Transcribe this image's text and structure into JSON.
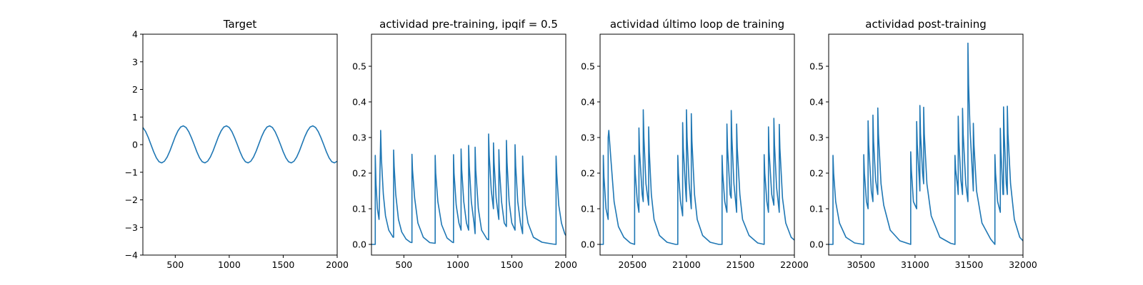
{
  "chart_data": [
    {
      "type": "line",
      "title": "Target",
      "xlabel": "",
      "ylabel": "",
      "xlim": [
        200,
        2000
      ],
      "ylim": [
        -4,
        4
      ],
      "xticks": [
        "500",
        "1000",
        "1500",
        "2000"
      ],
      "yticks": [
        "−4",
        "−3",
        "−2",
        "−1",
        "0",
        "1",
        "2",
        "3",
        "4"
      ],
      "grid": false,
      "color": "#1f77b4",
      "series": [
        {
          "x": [
            200,
            225,
            250,
            275,
            300,
            325,
            350,
            375,
            400,
            425,
            450,
            475,
            500,
            525,
            550,
            575,
            600,
            625,
            650,
            675,
            700,
            725,
            750,
            775,
            800,
            825,
            850,
            875,
            900,
            925,
            950,
            975,
            1000,
            1025,
            1050,
            1075,
            1100,
            1125,
            1150,
            1175,
            1200,
            1225,
            1250,
            1275,
            1300,
            1325,
            1350,
            1375,
            1400,
            1425,
            1450,
            1475,
            1500,
            1525,
            1550,
            1575,
            1600,
            1625,
            1650,
            1675,
            1700,
            1725,
            1750,
            1775,
            1800,
            1825,
            1850,
            1875,
            1900,
            1925,
            1950,
            1975,
            2000
          ],
          "y": [
            0.62,
            0.48,
            0.26,
            0.0,
            -0.26,
            -0.48,
            -0.62,
            -0.66,
            -0.6,
            -0.45,
            -0.23,
            0.03,
            0.29,
            0.5,
            0.64,
            0.68,
            0.62,
            0.47,
            0.25,
            0.0,
            -0.26,
            -0.48,
            -0.62,
            -0.66,
            -0.6,
            -0.45,
            -0.23,
            0.03,
            0.29,
            0.5,
            0.64,
            0.68,
            0.62,
            0.47,
            0.25,
            0.0,
            -0.26,
            -0.48,
            -0.62,
            -0.66,
            -0.6,
            -0.45,
            -0.23,
            0.03,
            0.29,
            0.5,
            0.64,
            0.68,
            0.62,
            0.47,
            0.25,
            0.0,
            -0.26,
            -0.48,
            -0.62,
            -0.66,
            -0.6,
            -0.45,
            -0.23,
            0.03,
            0.29,
            0.5,
            0.64,
            0.68,
            0.62,
            0.47,
            0.25,
            0.0,
            -0.26,
            -0.48,
            -0.62,
            -0.66,
            -0.6
          ]
        }
      ]
    },
    {
      "type": "line",
      "title": "actividad pre-training, ipqif = 0.5",
      "xlabel": "",
      "ylabel": "",
      "xlim": [
        200,
        2000
      ],
      "ylim": [
        -0.03,
        0.59
      ],
      "xticks": [
        "500",
        "1000",
        "1500",
        "2000"
      ],
      "yticks": [
        "0.0",
        "0.1",
        "0.2",
        "0.3",
        "0.4",
        "0.5"
      ],
      "grid": false,
      "color": "#1f77b4",
      "series": [
        {
          "x": [
            200,
            235,
            235,
            242,
            255,
            270,
            285,
            285,
            292,
            310,
            330,
            360,
            400,
            405,
            405,
            410,
            425,
            450,
            480,
            520,
            560,
            575,
            575,
            580,
            600,
            630,
            680,
            740,
            790,
            790,
            795,
            815,
            850,
            900,
            950,
            960,
            960,
            965,
            985,
            1010,
            1030,
            1030,
            1036,
            1055,
            1080,
            1100,
            1100,
            1106,
            1125,
            1150,
            1160,
            1160,
            1166,
            1190,
            1220,
            1270,
            1285,
            1285,
            1291,
            1310,
            1330,
            1330,
            1336,
            1355,
            1375,
            1380,
            1380,
            1386,
            1405,
            1430,
            1450,
            1450,
            1456,
            1475,
            1500,
            1530,
            1530,
            1536,
            1555,
            1580,
            1600,
            1600,
            1606,
            1625,
            1650,
            1700,
            1780,
            1880,
            1910,
            1910,
            1916,
            1935,
            1960,
            1990,
            2000
          ],
          "y": [
            0.0,
            0.0,
            0.25,
            0.17,
            0.1,
            0.07,
            0.3,
            0.32,
            0.24,
            0.14,
            0.08,
            0.04,
            0.02,
            0.02,
            0.265,
            0.22,
            0.14,
            0.07,
            0.035,
            0.015,
            0.006,
            0.005,
            0.253,
            0.21,
            0.13,
            0.06,
            0.02,
            0.005,
            0.003,
            0.25,
            0.2,
            0.12,
            0.055,
            0.018,
            0.006,
            0.005,
            0.252,
            0.2,
            0.11,
            0.06,
            0.04,
            0.268,
            0.21,
            0.12,
            0.06,
            0.04,
            0.278,
            0.22,
            0.12,
            0.06,
            0.03,
            0.273,
            0.21,
            0.1,
            0.04,
            0.015,
            0.013,
            0.31,
            0.25,
            0.15,
            0.1,
            0.285,
            0.23,
            0.13,
            0.08,
            0.07,
            0.266,
            0.21,
            0.12,
            0.06,
            0.05,
            0.292,
            0.23,
            0.12,
            0.06,
            0.04,
            0.28,
            0.22,
            0.12,
            0.06,
            0.03,
            0.248,
            0.2,
            0.11,
            0.06,
            0.02,
            0.006,
            0.001,
            0.0,
            0.248,
            0.2,
            0.11,
            0.06,
            0.03,
            0.025
          ]
        }
      ]
    },
    {
      "type": "line",
      "title": "actividad último loop de training",
      "xlabel": "",
      "ylabel": "",
      "xlim": [
        20200,
        22000
      ],
      "ylim": [
        -0.03,
        0.59
      ],
      "xticks": [
        "20500",
        "21000",
        "21500",
        "22000"
      ],
      "yticks": [
        "0.0",
        "0.1",
        "0.2",
        "0.3",
        "0.4",
        "0.5"
      ],
      "grid": false,
      "color": "#1f77b4",
      "series": [
        {
          "x": [
            20200,
            20230,
            20230,
            20236,
            20255,
            20275,
            20275,
            20281,
            20300,
            20330,
            20370,
            20420,
            20480,
            20520,
            20520,
            20526,
            20545,
            20560,
            20560,
            20566,
            20590,
            20600,
            20600,
            20606,
            20625,
            20650,
            20650,
            20656,
            20675,
            20700,
            20750,
            20820,
            20900,
            20920,
            20920,
            20926,
            20945,
            20965,
            20965,
            20971,
            20995,
            21000,
            21000,
            21006,
            21025,
            21045,
            21045,
            21051,
            21075,
            21100,
            21150,
            21220,
            21300,
            21330,
            21330,
            21336,
            21355,
            21375,
            21375,
            21381,
            21405,
            21415,
            21415,
            21421,
            21440,
            21465,
            21465,
            21471,
            21495,
            21520,
            21580,
            21660,
            21720,
            21720,
            21726,
            21745,
            21760,
            21760,
            21766,
            21790,
            21810,
            21810,
            21816,
            21835,
            21860,
            21860,
            21866,
            21890,
            21920,
            21970,
            22000
          ],
          "y": [
            0.0,
            0.0,
            0.25,
            0.19,
            0.1,
            0.07,
            0.3,
            0.32,
            0.24,
            0.12,
            0.05,
            0.02,
            0.004,
            0.0,
            0.25,
            0.2,
            0.12,
            0.09,
            0.327,
            0.26,
            0.14,
            0.12,
            0.378,
            0.3,
            0.17,
            0.11,
            0.33,
            0.26,
            0.14,
            0.07,
            0.025,
            0.006,
            0.0,
            0.0,
            0.25,
            0.2,
            0.12,
            0.08,
            0.342,
            0.27,
            0.14,
            0.12,
            0.378,
            0.3,
            0.17,
            0.1,
            0.367,
            0.29,
            0.14,
            0.07,
            0.025,
            0.006,
            0.0,
            0.0,
            0.25,
            0.2,
            0.12,
            0.09,
            0.338,
            0.27,
            0.14,
            0.13,
            0.376,
            0.3,
            0.17,
            0.09,
            0.338,
            0.27,
            0.14,
            0.07,
            0.025,
            0.004,
            0.0,
            0.252,
            0.2,
            0.12,
            0.09,
            0.33,
            0.26,
            0.14,
            0.11,
            0.354,
            0.28,
            0.16,
            0.09,
            0.337,
            0.27,
            0.13,
            0.06,
            0.02,
            0.012
          ]
        }
      ]
    },
    {
      "type": "line",
      "title": "actividad post-training",
      "xlabel": "",
      "ylabel": "",
      "xlim": [
        30200,
        32000
      ],
      "ylim": [
        -0.03,
        0.59
      ],
      "xticks": [
        "30500",
        "31000",
        "31500",
        "32000"
      ],
      "yticks": [
        "0.0",
        "0.1",
        "0.2",
        "0.3",
        "0.4",
        "0.5"
      ],
      "grid": false,
      "color": "#1f77b4",
      "series": [
        {
          "x": [
            30200,
            30240,
            30240,
            30246,
            30265,
            30300,
            30360,
            30440,
            30525,
            30525,
            30531,
            30550,
            30565,
            30565,
            30571,
            30595,
            30610,
            30610,
            30616,
            30635,
            30655,
            30655,
            30661,
            30685,
            30710,
            30770,
            30860,
            30940,
            30960,
            30960,
            30966,
            30985,
            31015,
            31015,
            31021,
            31040,
            31045,
            31045,
            31051,
            31070,
            31080,
            31080,
            31086,
            31110,
            31150,
            31230,
            31330,
            31370,
            31370,
            31376,
            31395,
            31400,
            31400,
            31406,
            31425,
            31440,
            31440,
            31446,
            31470,
            31490,
            31490,
            31496,
            31510,
            31540,
            31540,
            31546,
            31570,
            31620,
            31700,
            31740,
            31740,
            31746,
            31765,
            31790,
            31790,
            31796,
            31815,
            31820,
            31820,
            31826,
            31845,
            31855,
            31855,
            31861,
            31885,
            31920,
            31970,
            32000
          ],
          "y": [
            0.0,
            0.0,
            0.25,
            0.2,
            0.12,
            0.06,
            0.02,
            0.004,
            0.0,
            0.252,
            0.2,
            0.12,
            0.1,
            0.347,
            0.28,
            0.15,
            0.12,
            0.363,
            0.29,
            0.18,
            0.14,
            0.383,
            0.31,
            0.17,
            0.11,
            0.04,
            0.01,
            0.002,
            0.0,
            0.26,
            0.21,
            0.12,
            0.1,
            0.345,
            0.28,
            0.18,
            0.15,
            0.39,
            0.31,
            0.2,
            0.17,
            0.385,
            0.31,
            0.17,
            0.08,
            0.02,
            0.003,
            0.0,
            0.25,
            0.21,
            0.16,
            0.14,
            0.36,
            0.29,
            0.18,
            0.14,
            0.382,
            0.31,
            0.17,
            0.12,
            0.565,
            0.45,
            0.32,
            0.15,
            0.34,
            0.28,
            0.15,
            0.06,
            0.015,
            0.0,
            0.252,
            0.2,
            0.12,
            0.09,
            0.326,
            0.26,
            0.14,
            0.14,
            0.386,
            0.31,
            0.17,
            0.14,
            0.388,
            0.31,
            0.17,
            0.07,
            0.02,
            0.01
          ]
        }
      ]
    }
  ]
}
